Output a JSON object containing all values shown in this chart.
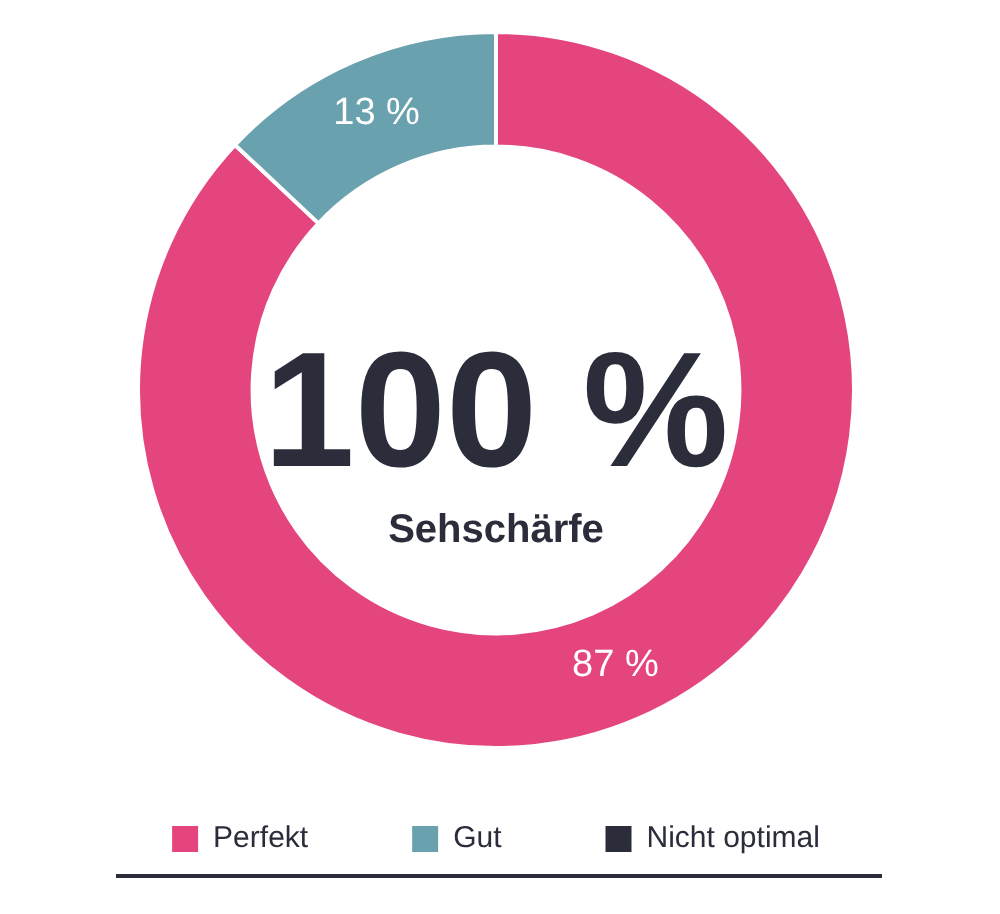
{
  "chart_data": {
    "type": "donut",
    "categories": [
      "Perfekt",
      "Gut",
      "Nicht optimal"
    ],
    "values": [
      87,
      13,
      0
    ],
    "colors": [
      "#e4457f",
      "#6aa1ae",
      "#2b2d3b"
    ],
    "value_labels": [
      "87 %",
      "13 %",
      null
    ],
    "annotations": [
      "100 %",
      "Sehschärfe"
    ],
    "legend": "bottom"
  }
}
